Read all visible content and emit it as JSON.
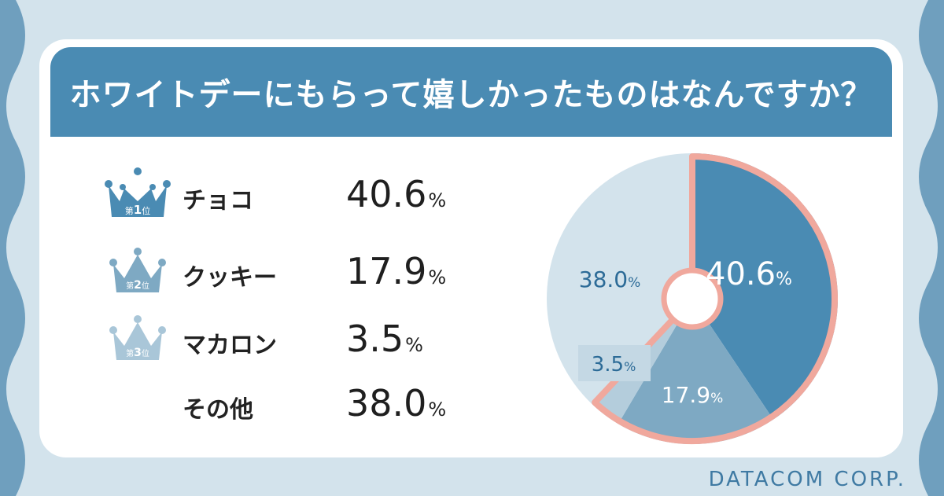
{
  "title": "ホワイトデーにもらって嬉しかったものはなんですか？",
  "footer": "DATACOM CORP.",
  "rows": [
    {
      "rank": "1",
      "rank_prefix": "第",
      "rank_suffix": "位",
      "label": "チョコ",
      "value": "40.6",
      "unit": "%",
      "crown_color": "#4a8bb3"
    },
    {
      "rank": "2",
      "rank_prefix": "第",
      "rank_suffix": "位",
      "label": "クッキー",
      "value": "17.9",
      "unit": "%",
      "crown_color": "#7ea9c3"
    },
    {
      "rank": "3",
      "rank_prefix": "第",
      "rank_suffix": "位",
      "label": "マカロン",
      "value": "3.5",
      "unit": "%",
      "crown_color": "#a9c6d8"
    },
    {
      "rank": "",
      "rank_prefix": "",
      "rank_suffix": "",
      "label": "その他",
      "value": "38.0",
      "unit": "%",
      "crown_color": ""
    }
  ],
  "chart_data": {
    "type": "pie",
    "categories": [
      "チョコ",
      "クッキー",
      "マカロン",
      "その他"
    ],
    "values": [
      40.6,
      17.9,
      3.5,
      38.0
    ],
    "value_labels": [
      "40.6",
      "17.9",
      "3.5",
      "38.0"
    ],
    "unit": "%",
    "colors": [
      "#4a8bb3",
      "#7ea9c3",
      "#b4cddc",
      "#d3e3ec"
    ],
    "highlight_stroke": "#f0a89d",
    "donut_hole": true,
    "legend": "none"
  }
}
